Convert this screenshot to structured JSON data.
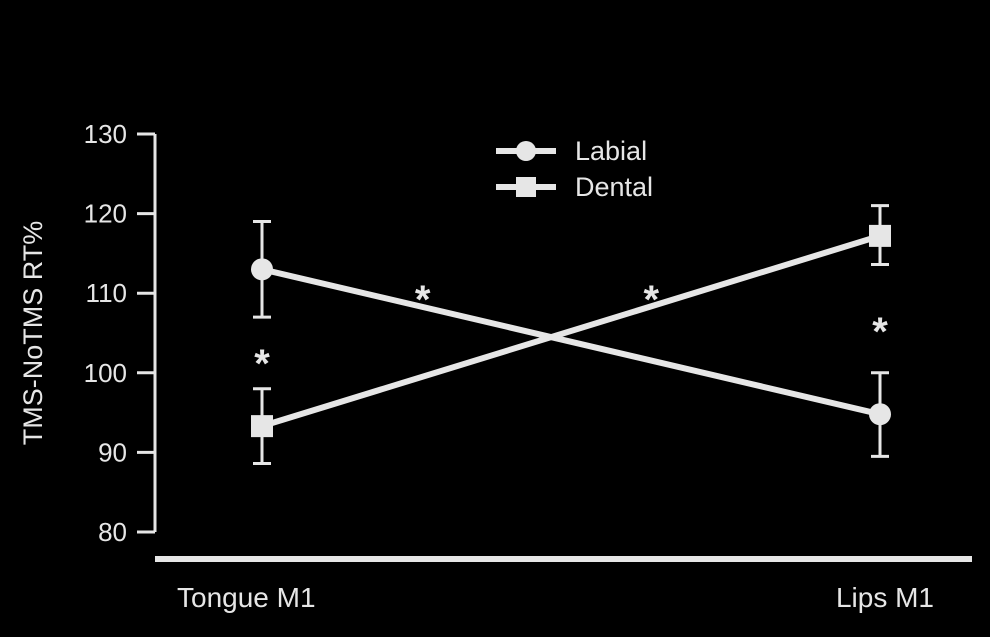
{
  "chart_data": {
    "type": "line",
    "ylabel": "TMS-NoTMS RT%",
    "ylim": [
      80,
      130
    ],
    "yticks": [
      80,
      90,
      100,
      110,
      120,
      130
    ],
    "categories": [
      "Tongue M1",
      "Lips M1"
    ],
    "legend_position": "top-center",
    "grid": false,
    "series": [
      {
        "name": "Labial",
        "marker": "circle",
        "values": [
          113.0,
          94.8
        ],
        "error_low": [
          107.0,
          89.5
        ],
        "error_high": [
          119.0,
          100.0
        ]
      },
      {
        "name": "Dental",
        "marker": "square",
        "values": [
          93.3,
          117.2
        ],
        "error_low": [
          88.6,
          113.6
        ],
        "error_high": [
          98.0,
          121.0
        ]
      }
    ],
    "annotations": [
      {
        "text": "*",
        "category": 0,
        "y": 102
      },
      {
        "text": "*",
        "between_categories": [
          0,
          1
        ],
        "frac": 0.26,
        "y": 110
      },
      {
        "text": "*",
        "between_categories": [
          0,
          1
        ],
        "frac": 0.63,
        "y": 110
      },
      {
        "text": "*",
        "category": 1,
        "y": 106
      }
    ],
    "colors": {
      "background": "#000000",
      "foreground": "#e6e6e6"
    }
  }
}
